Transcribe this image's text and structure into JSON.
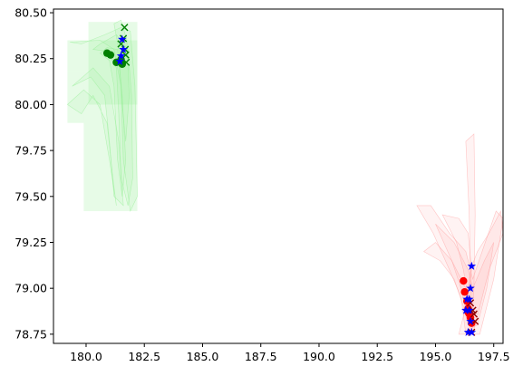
{
  "chart_data": {
    "type": "scatter",
    "title": "",
    "xlabel": "",
    "ylabel": "",
    "xlim": [
      178.6,
      197.9
    ],
    "ylim": [
      78.7,
      80.52
    ],
    "xticks": [
      180.0,
      182.5,
      185.0,
      187.5,
      190.0,
      192.5,
      195.0,
      197.5
    ],
    "xtick_labels": [
      "180.0",
      "182.5",
      "185.0",
      "187.5",
      "190.0",
      "192.5",
      "195.0",
      "197.5"
    ],
    "yticks": [
      78.75,
      79.0,
      79.25,
      79.5,
      79.75,
      80.0,
      80.25,
      80.5
    ],
    "ytick_labels": [
      "78.75",
      "79.00",
      "79.25",
      "79.50",
      "79.75",
      "80.00",
      "80.25",
      "80.50"
    ],
    "grid": false,
    "legend": null,
    "colors": {
      "green": "#008000",
      "green_fill": "#90ee90",
      "red": "#ff0000",
      "red_fill": "#ff9999",
      "blue": "#0000ff",
      "dark_red": "#8b0000"
    },
    "series": [
      {
        "color": "#008000",
        "marker": "circle",
        "points": [
          [
            180.9,
            80.28
          ],
          [
            181.05,
            80.27
          ],
          [
            181.3,
            80.23
          ],
          [
            181.55,
            80.22
          ],
          [
            181.5,
            80.245
          ]
        ]
      },
      {
        "color": "#008000",
        "marker": "x",
        "points": [
          [
            181.65,
            80.42
          ],
          [
            181.6,
            80.36
          ],
          [
            181.68,
            80.3
          ],
          [
            181.7,
            80.27
          ],
          [
            181.72,
            80.23
          ],
          [
            181.5,
            80.33
          ]
        ]
      },
      {
        "color": "#0000ff",
        "marker": "star",
        "points": [
          [
            181.55,
            80.355
          ],
          [
            181.6,
            80.3
          ],
          [
            181.45,
            80.235
          ],
          [
            181.5,
            80.265
          ]
        ]
      },
      {
        "color": "#ff0000",
        "marker": "circle",
        "points": [
          [
            196.2,
            79.04
          ],
          [
            196.25,
            78.98
          ],
          [
            196.35,
            78.93
          ],
          [
            196.4,
            78.89
          ],
          [
            196.45,
            78.86
          ],
          [
            196.5,
            78.84
          ],
          [
            196.55,
            78.81
          ],
          [
            196.4,
            78.87
          ]
        ]
      },
      {
        "color": "#8b0000",
        "marker": "x",
        "points": [
          [
            196.6,
            78.88
          ],
          [
            196.7,
            78.82
          ],
          [
            196.55,
            78.76
          ],
          [
            196.65,
            78.86
          ],
          [
            196.5,
            78.92
          ]
        ]
      },
      {
        "color": "#0000ff",
        "marker": "star",
        "points": [
          [
            196.55,
            79.12
          ],
          [
            196.5,
            79.0
          ],
          [
            196.35,
            78.94
          ],
          [
            196.45,
            78.94
          ],
          [
            196.3,
            78.88
          ],
          [
            196.45,
            78.88
          ],
          [
            196.5,
            78.82
          ],
          [
            196.4,
            78.76
          ],
          [
            196.55,
            78.76
          ]
        ]
      }
    ],
    "density_regions": [
      {
        "color": "#90ee90",
        "rect_regions": [
          [
            179.2,
            182.2,
            80.18,
            80.35
          ],
          [
            179.9,
            182.2,
            79.42,
            80.18
          ],
          [
            179.2,
            179.9,
            79.9,
            80.18
          ],
          [
            180.1,
            182.2,
            80.0,
            80.45
          ]
        ],
        "contours": [
          [
            [
              179.3,
              80.34
            ],
            [
              180.6,
              80.35
            ],
            [
              181.2,
              80.3
            ],
            [
              181.5,
              80.1
            ],
            [
              181.6,
              79.7
            ],
            [
              181.9,
              79.42
            ],
            [
              182.2,
              79.5
            ],
            [
              182.1,
              80.1
            ],
            [
              181.9,
              80.4
            ],
            [
              181.5,
              80.42
            ],
            [
              180.8,
              80.38
            ],
            [
              179.8,
              80.33
            ],
            [
              179.3,
              80.34
            ]
          ],
          [
            [
              180.3,
              80.3
            ],
            [
              180.9,
              80.29
            ],
            [
              181.3,
              80.2
            ],
            [
              181.4,
              79.95
            ],
            [
              181.5,
              79.6
            ],
            [
              181.8,
              79.45
            ],
            [
              182.0,
              79.6
            ],
            [
              181.95,
              80.05
            ],
            [
              181.8,
              80.3
            ],
            [
              181.3,
              80.38
            ],
            [
              180.6,
              80.33
            ],
            [
              180.3,
              80.3
            ]
          ],
          [
            [
              179.4,
              80.1
            ],
            [
              180.2,
              80.15
            ],
            [
              180.8,
              80.05
            ],
            [
              181.0,
              79.8
            ],
            [
              181.2,
              79.5
            ],
            [
              181.6,
              79.45
            ],
            [
              181.4,
              79.8
            ],
            [
              181.0,
              80.1
            ],
            [
              180.3,
              80.2
            ],
            [
              179.4,
              80.1
            ]
          ],
          [
            [
              180.6,
              80.28
            ],
            [
              181.0,
              80.24
            ],
            [
              181.2,
              80.1
            ],
            [
              181.35,
              79.7
            ],
            [
              181.55,
              79.5
            ],
            [
              181.7,
              79.7
            ],
            [
              181.55,
              80.05
            ],
            [
              181.35,
              80.3
            ],
            [
              180.9,
              80.31
            ],
            [
              180.6,
              80.28
            ]
          ],
          [
            [
              179.2,
              80.0
            ],
            [
              179.8,
              79.95
            ],
            [
              180.3,
              80.05
            ],
            [
              180.9,
              79.9
            ],
            [
              181.15,
              79.6
            ],
            [
              181.3,
              79.45
            ],
            [
              181.0,
              79.7
            ],
            [
              180.6,
              80.0
            ],
            [
              179.9,
              80.08
            ],
            [
              179.2,
              80.0
            ]
          ],
          [
            [
              181.2,
              80.44
            ],
            [
              181.4,
              80.3
            ],
            [
              181.55,
              80.0
            ],
            [
              181.7,
              79.8
            ],
            [
              181.85,
              80.05
            ],
            [
              181.75,
              80.35
            ],
            [
              181.5,
              80.46
            ],
            [
              181.2,
              80.44
            ]
          ]
        ]
      },
      {
        "color": "#ff9999",
        "rect_regions": [],
        "contours": [
          [
            [
              194.2,
              79.45
            ],
            [
              194.9,
              79.3
            ],
            [
              195.6,
              79.1
            ],
            [
              196.1,
              78.95
            ],
            [
              196.3,
              78.75
            ],
            [
              196.9,
              78.75
            ],
            [
              197.5,
              79.05
            ],
            [
              197.9,
              79.38
            ],
            [
              197.6,
              79.42
            ],
            [
              197.0,
              79.2
            ],
            [
              196.6,
              79.05
            ],
            [
              196.3,
              79.2
            ],
            [
              195.6,
              79.3
            ],
            [
              194.8,
              79.45
            ],
            [
              194.2,
              79.45
            ]
          ],
          [
            [
              195.0,
              79.35
            ],
            [
              195.7,
              79.15
            ],
            [
              196.1,
              79.0
            ],
            [
              196.35,
              78.85
            ],
            [
              196.5,
              78.78
            ],
            [
              196.8,
              78.8
            ],
            [
              197.2,
              79.0
            ],
            [
              197.5,
              79.25
            ],
            [
              197.1,
              79.15
            ],
            [
              196.6,
              79.0
            ],
            [
              196.4,
              79.1
            ],
            [
              195.8,
              79.25
            ],
            [
              195.0,
              79.35
            ]
          ],
          [
            [
              196.3,
              79.8
            ],
            [
              196.45,
              79.4
            ],
            [
              196.5,
              79.05
            ],
            [
              196.55,
              78.8
            ],
            [
              196.65,
              79.0
            ],
            [
              196.7,
              79.4
            ],
            [
              196.65,
              79.84
            ],
            [
              196.3,
              79.8
            ]
          ],
          [
            [
              194.5,
              79.2
            ],
            [
              195.2,
              79.15
            ],
            [
              195.8,
              79.05
            ],
            [
              196.2,
              78.9
            ],
            [
              196.4,
              78.8
            ],
            [
              196.6,
              78.85
            ],
            [
              196.3,
              79.0
            ],
            [
              195.7,
              79.15
            ],
            [
              195.0,
              79.25
            ],
            [
              194.5,
              79.2
            ]
          ],
          [
            [
              196.0,
              78.75
            ],
            [
              196.3,
              78.9
            ],
            [
              196.5,
              79.1
            ],
            [
              196.8,
              79.2
            ],
            [
              197.3,
              79.3
            ],
            [
              197.8,
              79.42
            ],
            [
              197.9,
              79.3
            ],
            [
              197.3,
              79.1
            ],
            [
              196.9,
              78.9
            ],
            [
              196.6,
              78.75
            ],
            [
              196.0,
              78.75
            ]
          ],
          [
            [
              195.3,
              79.4
            ],
            [
              195.9,
              79.25
            ],
            [
              196.2,
              79.1
            ],
            [
              196.4,
              78.95
            ],
            [
              196.55,
              79.1
            ],
            [
              196.4,
              79.3
            ],
            [
              196.0,
              79.38
            ],
            [
              195.3,
              79.4
            ]
          ]
        ]
      }
    ]
  }
}
